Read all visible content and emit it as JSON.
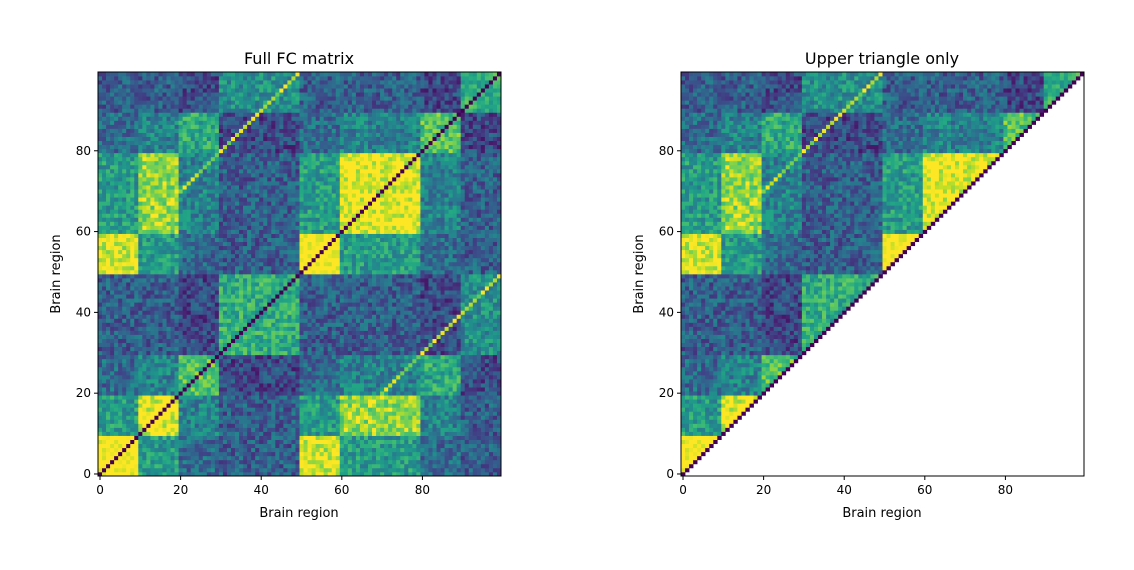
{
  "chart_data": [
    {
      "type": "heatmap",
      "title": "Full FC matrix",
      "xlabel": "Brain region",
      "ylabel": "Brain region",
      "n_regions": 100,
      "xlim": [
        0,
        99
      ],
      "ylim": [
        0,
        99
      ],
      "xticks": [
        0,
        20,
        40,
        60,
        80
      ],
      "yticks": [
        0,
        20,
        40,
        60,
        80
      ],
      "mask": "none",
      "colormap": "viridis",
      "diagonal_value": "low",
      "module_boundaries": [
        0,
        10,
        20,
        30,
        50,
        60,
        80,
        90,
        100
      ]
    },
    {
      "type": "heatmap",
      "title": "Upper triangle only",
      "xlabel": "Brain region",
      "ylabel": "Brain region",
      "n_regions": 100,
      "xlim": [
        0,
        99
      ],
      "ylim": [
        0,
        99
      ],
      "xticks": [
        0,
        20,
        40,
        60,
        80
      ],
      "yticks": [
        0,
        20,
        40,
        60,
        80
      ],
      "mask": "upper-triangle",
      "colormap": "viridis"
    }
  ]
}
